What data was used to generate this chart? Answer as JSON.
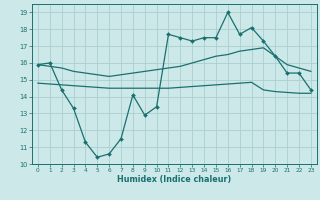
{
  "xlabel": "Humidex (Indice chaleur)",
  "bg_color": "#cce8e8",
  "grid_color": "#aacfcf",
  "line_color": "#1a7070",
  "xlim": [
    -0.5,
    23.5
  ],
  "ylim": [
    10,
    19.5
  ],
  "yticks": [
    10,
    11,
    12,
    13,
    14,
    15,
    16,
    17,
    18,
    19
  ],
  "xticks": [
    0,
    1,
    2,
    3,
    4,
    5,
    6,
    7,
    8,
    9,
    10,
    11,
    12,
    13,
    14,
    15,
    16,
    17,
    18,
    19,
    20,
    21,
    22,
    23
  ],
  "hours": [
    0,
    1,
    2,
    3,
    4,
    5,
    6,
    7,
    8,
    9,
    10,
    11,
    12,
    13,
    14,
    15,
    16,
    17,
    18,
    19,
    20,
    21,
    22,
    23
  ],
  "main_line": [
    15.9,
    16.0,
    14.4,
    13.3,
    11.3,
    10.4,
    10.6,
    11.5,
    14.1,
    12.9,
    13.4,
    17.7,
    17.5,
    17.3,
    17.5,
    17.5,
    19.0,
    17.7,
    18.1,
    17.3,
    16.4,
    15.4,
    15.4,
    14.4
  ],
  "upper_line": [
    15.9,
    15.8,
    15.7,
    15.5,
    15.4,
    15.3,
    15.2,
    15.3,
    15.4,
    15.5,
    15.6,
    15.7,
    15.8,
    16.0,
    16.2,
    16.4,
    16.5,
    16.7,
    16.8,
    16.9,
    16.4,
    15.9,
    15.7,
    15.5
  ],
  "lower_line": [
    14.8,
    14.75,
    14.7,
    14.65,
    14.6,
    14.55,
    14.5,
    14.5,
    14.5,
    14.5,
    14.5,
    14.5,
    14.55,
    14.6,
    14.65,
    14.7,
    14.75,
    14.8,
    14.85,
    14.4,
    14.3,
    14.25,
    14.2,
    14.2
  ]
}
